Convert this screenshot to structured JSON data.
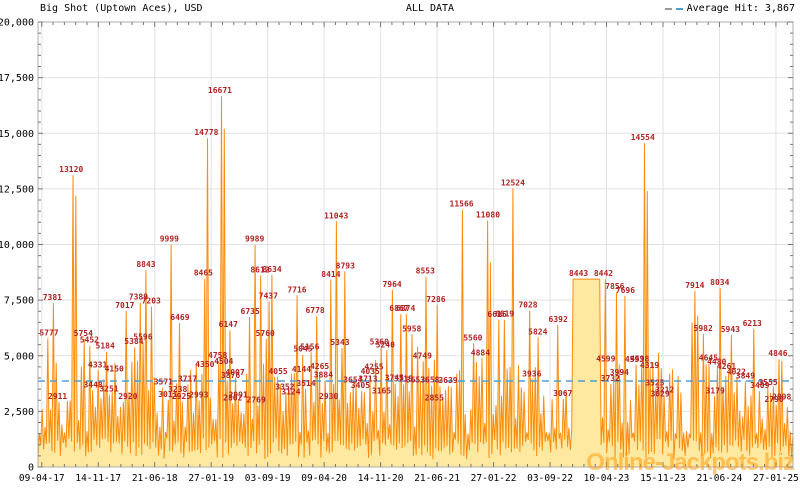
{
  "header": {
    "title": "Big Shot (Uptown Aces), USD",
    "center_label": "ALL DATA",
    "legend_label": "Average Hit: 3,867"
  },
  "watermark": "Online-Jackpots.biz",
  "colors": {
    "background": "#FFFFFF",
    "text": "#000000",
    "series_stroke": "#FB8C0E",
    "series_fill": "#FFE9A0",
    "value_label": "#B22222",
    "average_line": "#4D9FD0",
    "grid": "#E2E2E2",
    "border": "#ADADAD",
    "tick": "#777777",
    "legend_dash_left": "#999999",
    "legend_dash_right": "#4D9FD0",
    "watermark_color": "rgba(255,150,0,0.5)"
  },
  "chart_data": {
    "type": "area",
    "title": "ALL DATA",
    "series_name": "Big Shot (Uptown Aces), USD",
    "currency": "USD",
    "average_hit": 3867,
    "ylim": [
      0,
      20000
    ],
    "grid": true,
    "legend_position": "top-right",
    "ytick_values": [
      0,
      2500,
      5000,
      7500,
      10000,
      12500,
      15000,
      17500,
      20000
    ],
    "ytick_labels": [
      "0",
      "2,500",
      "5,000",
      "7,500",
      "10,000",
      "12,500",
      "15,000",
      "17,500",
      "20,000"
    ],
    "xticks": [
      "09-04-17",
      "14-11-17",
      "21-06-18",
      "27-01-19",
      "03-09-19",
      "09-04-20",
      "14-11-20",
      "21-06-21",
      "27-01-22",
      "03-09-22",
      "10-04-23",
      "15-11-23",
      "21-06-24",
      "27-01-25"
    ],
    "xtick_first_frac": 0.005,
    "xtick_step_frac": 0.0748,
    "plateau": {
      "x1": 0.708,
      "x2": 0.744,
      "value": 8443
    },
    "points": [
      [
        0.013,
        5777
      ],
      [
        0.019,
        7381
      ],
      [
        0.026,
        2911
      ],
      [
        0.044,
        13120
      ],
      [
        0.048,
        12200,
        0
      ],
      [
        0.06,
        5754
      ],
      [
        0.068,
        5452
      ],
      [
        0.073,
        3448
      ],
      [
        0.079,
        4331
      ],
      [
        0.089,
        5184
      ],
      [
        0.094,
        3251
      ],
      [
        0.101,
        4150
      ],
      [
        0.115,
        7017
      ],
      [
        0.119,
        2920
      ],
      [
        0.127,
        5384
      ],
      [
        0.133,
        7389
      ],
      [
        0.139,
        5596
      ],
      [
        0.143,
        8843
      ],
      [
        0.15,
        7203
      ],
      [
        0.166,
        3571
      ],
      [
        0.172,
        3011
      ],
      [
        0.174,
        9999
      ],
      [
        0.185,
        3238
      ],
      [
        0.188,
        6469
      ],
      [
        0.19,
        2925
      ],
      [
        0.198,
        3717
      ],
      [
        0.213,
        2993
      ],
      [
        0.219,
        8465
      ],
      [
        0.221,
        4350
      ],
      [
        0.223,
        14778
      ],
      [
        0.238,
        4758
      ],
      [
        0.241,
        16671
      ],
      [
        0.245,
        15200,
        0
      ],
      [
        0.246,
        4504
      ],
      [
        0.252,
        6147
      ],
      [
        0.255,
        3876
      ],
      [
        0.258,
        2862
      ],
      [
        0.261,
        4007
      ],
      [
        0.265,
        2991
      ],
      [
        0.281,
        6735
      ],
      [
        0.287,
        9989
      ],
      [
        0.289,
        2769
      ],
      [
        0.294,
        8612
      ],
      [
        0.301,
        5760
      ],
      [
        0.305,
        7437
      ],
      [
        0.31,
        8634
      ],
      [
        0.318,
        4055
      ],
      [
        0.327,
        3352
      ],
      [
        0.335,
        3124
      ],
      [
        0.343,
        7716
      ],
      [
        0.349,
        4144
      ],
      [
        0.351,
        5045
      ],
      [
        0.355,
        3514
      ],
      [
        0.36,
        5156
      ],
      [
        0.367,
        6778
      ],
      [
        0.373,
        4265
      ],
      [
        0.378,
        3884
      ],
      [
        0.385,
        2930
      ],
      [
        0.388,
        8414
      ],
      [
        0.395,
        11043
      ],
      [
        0.4,
        5343
      ],
      [
        0.407,
        8793
      ],
      [
        0.417,
        3654
      ],
      [
        0.427,
        3405
      ],
      [
        0.437,
        3713
      ],
      [
        0.44,
        4035
      ],
      [
        0.445,
        4255
      ],
      [
        0.452,
        5360
      ],
      [
        0.455,
        3165
      ],
      [
        0.46,
        5240
      ],
      [
        0.469,
        7964
      ],
      [
        0.472,
        3745
      ],
      [
        0.478,
        6867
      ],
      [
        0.484,
        3715
      ],
      [
        0.487,
        6874
      ],
      [
        0.495,
        5958
      ],
      [
        0.5,
        3653
      ],
      [
        0.509,
        4749
      ],
      [
        0.513,
        8553
      ],
      [
        0.519,
        3658
      ],
      [
        0.525,
        2855
      ],
      [
        0.527,
        7286
      ],
      [
        0.543,
        3639
      ],
      [
        0.561,
        11566
      ],
      [
        0.576,
        5560
      ],
      [
        0.586,
        4884
      ],
      [
        0.596,
        11080
      ],
      [
        0.599,
        9200,
        0
      ],
      [
        0.608,
        6616
      ],
      [
        0.618,
        6619
      ],
      [
        0.629,
        12524
      ],
      [
        0.649,
        7028
      ],
      [
        0.654,
        3936
      ],
      [
        0.662,
        5824
      ],
      [
        0.689,
        6392
      ],
      [
        0.695,
        3067
      ],
      [
        0.716,
        8443
      ],
      [
        0.749,
        8442
      ],
      [
        0.752,
        4599
      ],
      [
        0.758,
        3732
      ],
      [
        0.764,
        7856
      ],
      [
        0.77,
        3994
      ],
      [
        0.778,
        7696
      ],
      [
        0.79,
        4593
      ],
      [
        0.797,
        4598
      ],
      [
        0.801,
        14554
      ],
      [
        0.805,
        12400,
        0
      ],
      [
        0.81,
        4319
      ],
      [
        0.817,
        3525
      ],
      [
        0.824,
        3029
      ],
      [
        0.83,
        3212
      ],
      [
        0.867,
        6500,
        0
      ],
      [
        0.87,
        7914
      ],
      [
        0.873,
        6800,
        0
      ],
      [
        0.881,
        5982
      ],
      [
        0.888,
        4645
      ],
      [
        0.897,
        3179
      ],
      [
        0.899,
        4480
      ],
      [
        0.903,
        8034
      ],
      [
        0.912,
        4261
      ],
      [
        0.917,
        5943
      ],
      [
        0.925,
        4022
      ],
      [
        0.937,
        3849
      ],
      [
        0.946,
        6213
      ],
      [
        0.956,
        3409
      ],
      [
        0.967,
        3555
      ],
      [
        0.975,
        2790
      ],
      [
        0.98,
        4846
      ],
      [
        0.985,
        2898
      ]
    ],
    "noise": {
      "points": 540,
      "seed": 7,
      "low_min": 350,
      "low_range": 950,
      "high_min": 1500,
      "high_range": 3300
    }
  }
}
